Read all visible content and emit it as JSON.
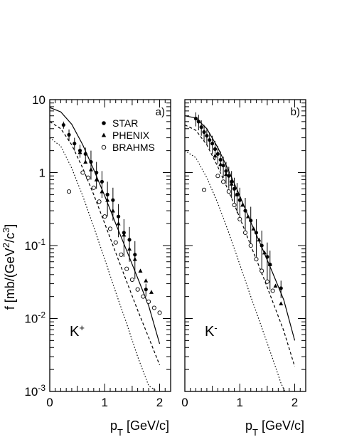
{
  "chart_data": {
    "type": "scatter",
    "ylabel": "f [mb/(GeV²/c³]",
    "ylabel_main": "f [mb/(GeV",
    "ylabel_sup1": "2",
    "ylabel_mid": "/c",
    "ylabel_sup2": "3",
    "ylabel_end": "]",
    "xlabel_main": "p",
    "xlabel_sub": "T",
    "xlabel_end": " [GeV/c]",
    "y_scale": "log",
    "ylim": [
      0.001,
      10
    ],
    "xlim": [
      0,
      2.2
    ],
    "legend_placement": "top-right of left panel",
    "legend": [
      {
        "name": "STAR",
        "marker": "filled-circle"
      },
      {
        "name": "PHENIX",
        "marker": "filled-triangle"
      },
      {
        "name": "BRAHMS",
        "marker": "open-circle"
      }
    ],
    "y_ticks": [
      {
        "base": "10",
        "exp": "-3",
        "value": 0.001
      },
      {
        "base": "10",
        "exp": "-2",
        "value": 0.01
      },
      {
        "base": "10",
        "exp": "-1",
        "value": 0.1
      },
      {
        "base": "1",
        "exp": "",
        "value": 1
      },
      {
        "base": "10",
        "exp": "",
        "value": 10
      }
    ],
    "x_ticks": [
      "0",
      "1",
      "2"
    ],
    "panels": [
      {
        "label": "a)",
        "particle": "K",
        "charge": "+",
        "star": [
          [
            0.25,
            4.5,
            0.5
          ],
          [
            0.35,
            3.3,
            0.6
          ],
          [
            0.45,
            2.5,
            0.5
          ],
          [
            0.55,
            2.0,
            0.4
          ],
          [
            0.65,
            1.8,
            0.4
          ],
          [
            0.75,
            1.4,
            0.6
          ],
          [
            0.85,
            1.0,
            0.4
          ],
          [
            0.95,
            0.75,
            0.3
          ],
          [
            1.05,
            0.5,
            0.25
          ],
          [
            1.15,
            0.42,
            0.2
          ],
          [
            1.25,
            0.25,
            0.12
          ],
          [
            1.35,
            0.15,
            0.08
          ],
          [
            1.45,
            0.12,
            0.06
          ],
          [
            1.55,
            0.075,
            0.04
          ],
          [
            1.75,
            0.025,
            0.005
          ]
        ],
        "phenix": [
          [
            0.55,
            1.9
          ],
          [
            0.65,
            1.4
          ],
          [
            0.75,
            1.1
          ],
          [
            0.85,
            0.8
          ],
          [
            0.95,
            0.55
          ],
          [
            1.05,
            0.42
          ],
          [
            1.15,
            0.3
          ],
          [
            1.25,
            0.2
          ],
          [
            1.35,
            0.14
          ],
          [
            1.45,
            0.09
          ],
          [
            1.55,
            0.065
          ],
          [
            1.65,
            0.045
          ],
          [
            1.75,
            0.033
          ],
          [
            1.85,
            0.023
          ]
        ],
        "brahms": [
          [
            0.35,
            0.55
          ],
          [
            0.6,
            1.0
          ],
          [
            0.7,
            0.85
          ],
          [
            0.8,
            0.62
          ],
          [
            0.9,
            0.4
          ],
          [
            1.0,
            0.25
          ],
          [
            1.1,
            0.17
          ],
          [
            1.2,
            0.11
          ],
          [
            1.3,
            0.075
          ],
          [
            1.4,
            0.048
          ],
          [
            1.5,
            0.034
          ],
          [
            1.6,
            0.025
          ],
          [
            1.7,
            0.02
          ],
          [
            1.8,
            0.017
          ],
          [
            1.9,
            0.014
          ],
          [
            2.0,
            0.012
          ]
        ],
        "curves": {
          "solid": [
            [
              0,
              7.8
            ],
            [
              0.2,
              6.8
            ],
            [
              0.4,
              4.6
            ],
            [
              0.6,
              2.4
            ],
            [
              0.8,
              1.1
            ],
            [
              1.0,
              0.48
            ],
            [
              1.2,
              0.2
            ],
            [
              1.4,
              0.085
            ],
            [
              1.6,
              0.036
            ],
            [
              1.8,
              0.015
            ],
            [
              2.0,
              0.0045
            ]
          ],
          "dashed": [
            [
              0,
              5.0
            ],
            [
              0.2,
              4.0
            ],
            [
              0.4,
              2.4
            ],
            [
              0.6,
              1.15
            ],
            [
              0.8,
              0.5
            ],
            [
              1.0,
              0.2
            ],
            [
              1.2,
              0.08
            ],
            [
              1.4,
              0.032
            ],
            [
              1.6,
              0.013
            ],
            [
              1.8,
              0.0055
            ],
            [
              2.0,
              0.0023
            ]
          ],
          "dotted": [
            [
              0,
              3.0
            ],
            [
              0.2,
              2.3
            ],
            [
              0.4,
              1.15
            ],
            [
              0.6,
              0.48
            ],
            [
              0.8,
              0.18
            ],
            [
              1.0,
              0.065
            ],
            [
              1.2,
              0.023
            ],
            [
              1.4,
              0.0085
            ],
            [
              1.6,
              0.003
            ],
            [
              1.8,
              0.0012
            ],
            [
              1.95,
              0.001
            ]
          ]
        }
      },
      {
        "label": "b)",
        "particle": "K",
        "charge": "-",
        "star": [
          [
            0.2,
            5.5,
            1.2
          ],
          [
            0.25,
            5.0,
            1.2
          ],
          [
            0.3,
            4.2,
            1.0
          ],
          [
            0.35,
            3.6,
            0.9
          ],
          [
            0.4,
            3.2,
            0.8
          ],
          [
            0.45,
            2.8,
            0.7
          ],
          [
            0.5,
            2.5,
            0.7
          ],
          [
            0.55,
            2.1,
            0.6
          ],
          [
            0.6,
            1.8,
            0.5
          ],
          [
            0.65,
            1.5,
            0.45
          ],
          [
            0.7,
            1.25,
            0.4
          ],
          [
            0.75,
            1.05,
            0.35
          ],
          [
            0.8,
            0.9,
            0.3
          ],
          [
            0.85,
            0.75,
            0.3
          ],
          [
            0.9,
            0.6,
            0.25
          ],
          [
            0.95,
            0.5,
            0.22
          ],
          [
            1.0,
            0.42,
            0.2
          ],
          [
            1.1,
            0.3,
            0.15
          ],
          [
            1.2,
            0.22,
            0.12
          ],
          [
            1.3,
            0.15,
            0.08
          ],
          [
            1.4,
            0.1,
            0.06
          ],
          [
            1.5,
            0.07,
            0.04
          ],
          [
            1.55,
            0.055,
            0.03
          ],
          [
            1.75,
            0.026,
            0.007
          ]
        ],
        "phenix": [
          [
            0.55,
            1.7
          ],
          [
            0.65,
            1.3
          ],
          [
            0.75,
            0.95
          ],
          [
            0.85,
            0.7
          ],
          [
            0.95,
            0.5
          ],
          [
            1.05,
            0.36
          ],
          [
            1.15,
            0.25
          ],
          [
            1.25,
            0.17
          ],
          [
            1.35,
            0.12
          ],
          [
            1.45,
            0.08
          ],
          [
            1.55,
            0.055
          ],
          [
            1.65,
            0.028
          ],
          [
            1.75,
            0.016
          ]
        ],
        "brahms": [
          [
            0.35,
            0.58
          ],
          [
            0.6,
            0.9
          ],
          [
            0.7,
            0.75
          ],
          [
            0.8,
            0.55
          ],
          [
            0.9,
            0.36
          ],
          [
            1.0,
            0.23
          ],
          [
            1.1,
            0.15
          ],
          [
            1.2,
            0.1
          ],
          [
            1.3,
            0.065
          ],
          [
            1.4,
            0.045
          ],
          [
            1.5,
            0.032
          ],
          [
            1.6,
            0.024
          ]
        ],
        "curves": {
          "solid": [
            [
              0,
              6.0
            ],
            [
              0.2,
              5.6
            ],
            [
              0.4,
              4.0
            ],
            [
              0.6,
              2.2
            ],
            [
              0.8,
              1.05
            ],
            [
              1.0,
              0.48
            ],
            [
              1.2,
              0.21
            ],
            [
              1.4,
              0.095
            ],
            [
              1.6,
              0.042
            ],
            [
              1.8,
              0.018
            ],
            [
              2.0,
              0.005
            ]
          ],
          "dashed": [
            [
              0,
              4.5
            ],
            [
              0.2,
              3.8
            ],
            [
              0.4,
              2.4
            ],
            [
              0.6,
              1.2
            ],
            [
              0.8,
              0.55
            ],
            [
              1.0,
              0.24
            ],
            [
              1.2,
              0.1
            ],
            [
              1.4,
              0.042
            ],
            [
              1.6,
              0.017
            ],
            [
              1.8,
              0.0068
            ],
            [
              2.0,
              0.0022
            ]
          ],
          "dotted": [
            [
              0,
              2.0
            ],
            [
              0.2,
              1.6
            ],
            [
              0.4,
              0.85
            ],
            [
              0.6,
              0.38
            ],
            [
              0.8,
              0.15
            ],
            [
              1.0,
              0.055
            ],
            [
              1.2,
              0.02
            ],
            [
              1.4,
              0.0075
            ],
            [
              1.6,
              0.0028
            ],
            [
              1.75,
              0.0013
            ],
            [
              1.82,
              0.001
            ]
          ]
        }
      }
    ]
  }
}
